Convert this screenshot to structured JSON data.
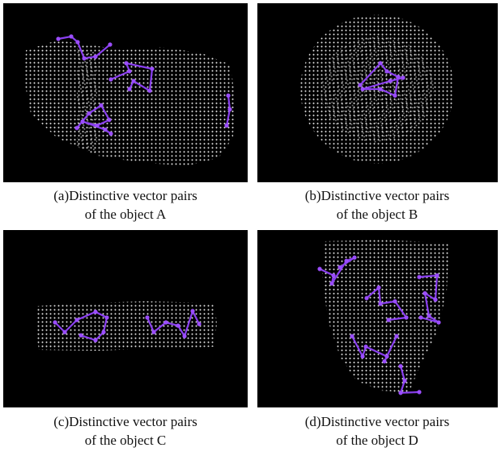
{
  "panels": [
    {
      "caption": [
        "(a)Distinctive vector pairs",
        "of the object A"
      ]
    },
    {
      "caption": [
        "(b)Distinctive vector pairs",
        "of the object B"
      ]
    },
    {
      "caption": [
        "(c)Distinctive vector pairs",
        "of the object C"
      ]
    },
    {
      "caption": [
        "(d)Distinctive vector pairs",
        "of the object D"
      ]
    }
  ]
}
